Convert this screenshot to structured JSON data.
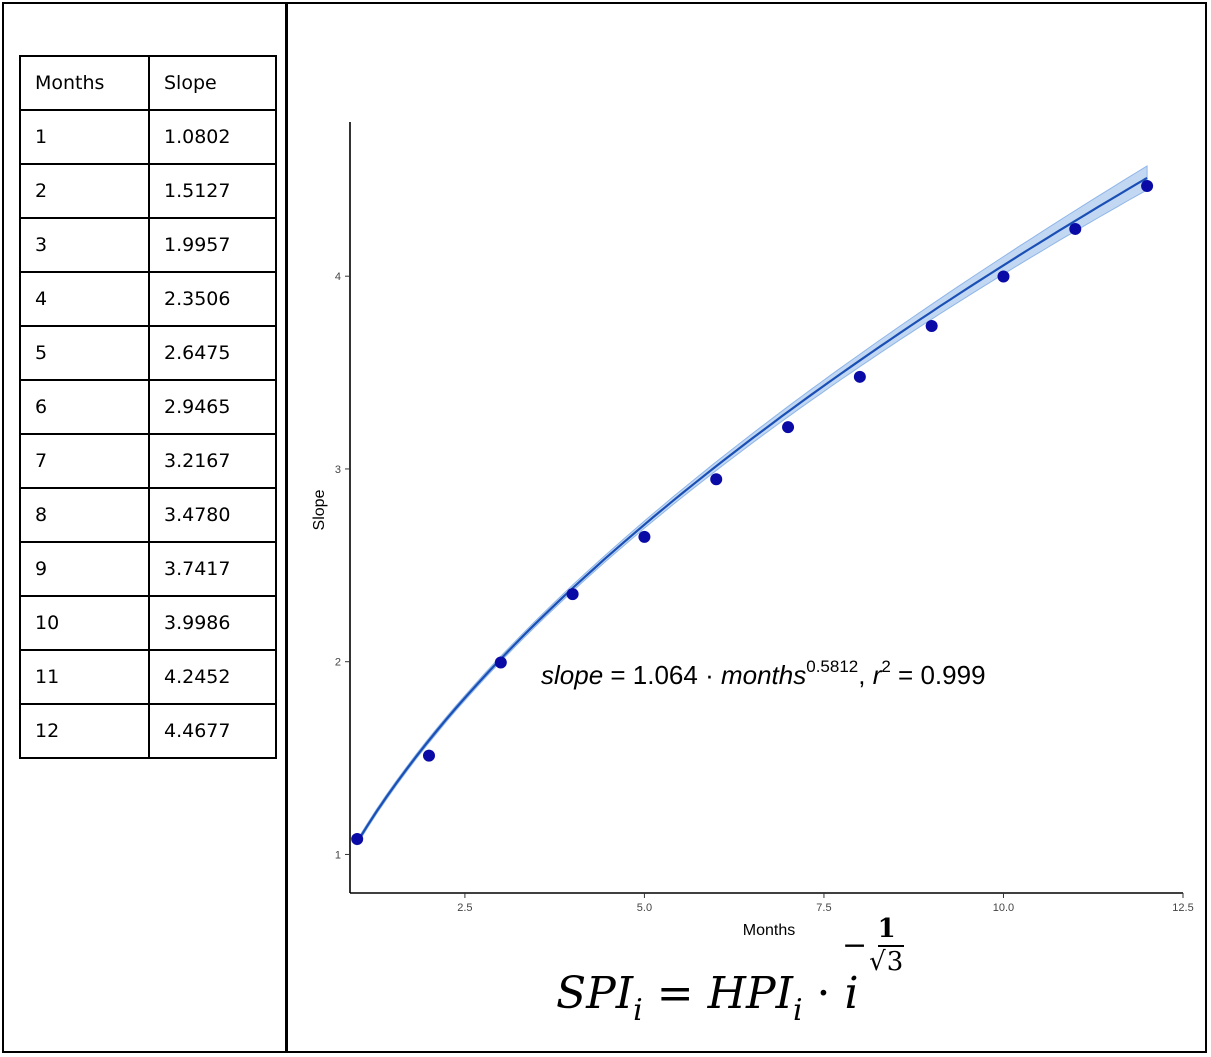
{
  "table": {
    "headers": [
      "Months",
      "Slope"
    ],
    "rows": [
      [
        "1",
        "1.0802"
      ],
      [
        "2",
        "1.5127"
      ],
      [
        "3",
        "1.9957"
      ],
      [
        "4",
        "2.3506"
      ],
      [
        "5",
        "2.6475"
      ],
      [
        "6",
        "2.9465"
      ],
      [
        "7",
        "3.2167"
      ],
      [
        "8",
        "3.4780"
      ],
      [
        "9",
        "3.7417"
      ],
      [
        "10",
        "3.9986"
      ],
      [
        "11",
        "4.2452"
      ],
      [
        "12",
        "4.4677"
      ]
    ]
  },
  "chart_data": {
    "type": "scatter",
    "xlabel": "Months",
    "ylabel": "Slope",
    "xlim": [
      0.9,
      12.5
    ],
    "ylim": [
      0.8,
      4.8
    ],
    "x_ticks": [
      2.5,
      5.0,
      7.5,
      10.0,
      12.5
    ],
    "x_tick_labels": [
      "2.5",
      "5.0",
      "7.5",
      "10.0",
      "12.5"
    ],
    "y_ticks": [
      1,
      2,
      3,
      4
    ],
    "y_tick_labels": [
      "1",
      "2",
      "3",
      "4"
    ],
    "grid": false,
    "points": {
      "x": [
        1,
        2,
        3,
        4,
        5,
        6,
        7,
        8,
        9,
        10,
        11,
        12
      ],
      "y": [
        1.0802,
        1.5127,
        1.9957,
        2.3506,
        2.6475,
        2.9465,
        3.2167,
        3.478,
        3.7417,
        3.9986,
        4.2452,
        4.4677
      ],
      "color": "#0a0aa6"
    },
    "fit": {
      "coefficient": 1.064,
      "exponent": 0.5812,
      "color": "#1a4fb5",
      "band_color": "#8fb6e8"
    },
    "annotation": {
      "lhs": "slope",
      "equals": " = 1.064 · ",
      "var": "months",
      "exponent": "0.5812",
      "comma": ",  ",
      "r": "r",
      "r_exp": "2",
      "r_value": " = 0.999"
    }
  },
  "formula": {
    "lhs": "SPI",
    "lhs_sub": "i",
    "equals": " = ",
    "rhs": "HPI",
    "rhs_sub": "i",
    "dot": " · ",
    "base": "i",
    "neg": "−",
    "num": "1",
    "root": "√",
    "den_value": "3"
  }
}
